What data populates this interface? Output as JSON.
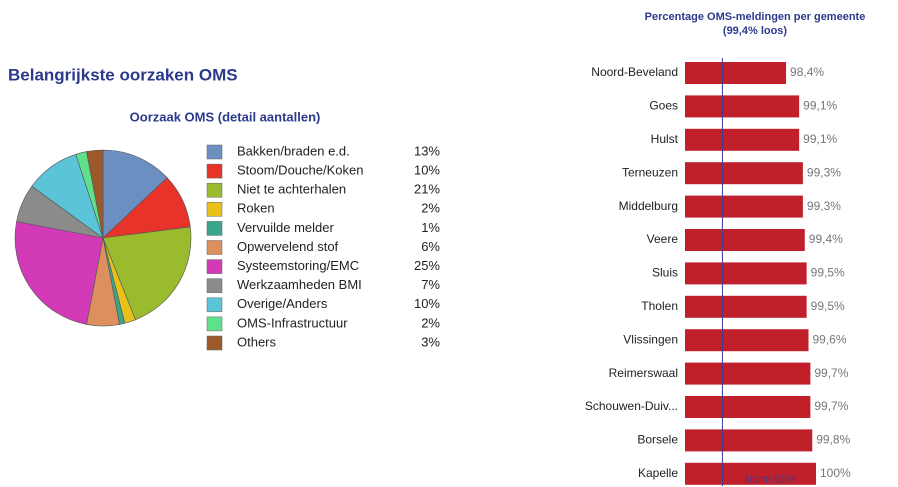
{
  "heading": "Belangrijkste oorzaken OMS",
  "chart_data": [
    {
      "type": "pie",
      "title": "Oorzaak OMS (detail aantallen)",
      "categories": [
        "Bakken/braden e.d.",
        "Stoom/Douche/Koken",
        "Niet te achterhalen",
        "Roken",
        "Vervuilde melder",
        "Opwervelend stof",
        "Systeemstoring/EMC",
        "Werkzaamheden BMI",
        "Overige/Anders",
        "OMS-Infrastructuur",
        "Others"
      ],
      "values": [
        13,
        10,
        21,
        2,
        1,
        6,
        25,
        7,
        10,
        2,
        3
      ],
      "value_labels": [
        "13%",
        "10%",
        "21%",
        "2%",
        "1%",
        "6%",
        "25%",
        "7%",
        "10%",
        "2%",
        "3%"
      ],
      "colors": [
        "#6b8fc0",
        "#e8332a",
        "#9bbb2f",
        "#e8c21a",
        "#3aa58a",
        "#dd8f5e",
        "#d23ab8",
        "#8b8b8b",
        "#5bc4d8",
        "#5fe08a",
        "#9b5a2a"
      ],
      "legend": "right"
    },
    {
      "type": "hbar",
      "title": "Percentage OMS-meldingen per gemeente",
      "subtitle": "(99,4% loos)",
      "categories": [
        "Noord-Beveland",
        "Goes",
        "Hulst",
        "Terneuzen",
        "Middelburg",
        "Veere",
        "Sluis",
        "Tholen",
        "Vlissingen",
        "Reimerswaal",
        "Schouwen-Duiv...",
        "Borsele",
        "Kapelle"
      ],
      "values": [
        98.4,
        99.1,
        99.1,
        99.3,
        99.3,
        99.4,
        99.5,
        99.5,
        99.6,
        99.7,
        99.7,
        99.8,
        100
      ],
      "value_labels": [
        "98,4%",
        "99,1%",
        "99,1%",
        "99,3%",
        "99,3%",
        "99,4%",
        "99,5%",
        "99,5%",
        "99,6%",
        "99,7%",
        "99,7%",
        "99,8%",
        "100%"
      ],
      "color": "#c0202a",
      "xlim": [
        93,
        100
      ],
      "norm": {
        "value": 95,
        "label": "Norm 95%"
      }
    }
  ]
}
